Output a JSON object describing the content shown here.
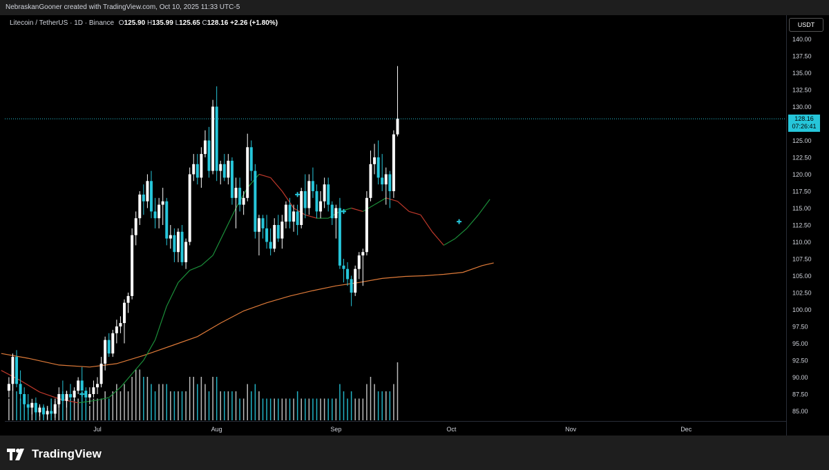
{
  "header": {
    "attribution": "NebraskanGooner created with TradingView.com, Oct 10, 2025 11:33 UTC-5"
  },
  "legend": {
    "symbol": "Litecoin / TetherUS · 1D · Binance",
    "o_label": "O",
    "o_value": "125.90",
    "h_label": "H",
    "h_value": "135.99",
    "l_label": "L",
    "l_value": "125.65",
    "c_label": "C",
    "c_value": "128.16",
    "change": "+2.26 (+1.80%)"
  },
  "currency_button": "USDT",
  "last_price": {
    "price": "128.16",
    "countdown": "07:26:41"
  },
  "footer": {
    "brand": "TradingView"
  },
  "colors": {
    "up": "#ffffff",
    "down": "#26c6da",
    "ma_long": "#e07b39",
    "ma_fast_green": "#1b8f3a",
    "ma_fast_red": "#c0392b",
    "price_line": "#26c6da",
    "axis_text": "#d1d4dc"
  },
  "chart_data": {
    "type": "candlestick",
    "ylim": [
      83.5,
      142.5
    ],
    "y_ticks": [
      "140.00",
      "137.50",
      "135.00",
      "132.50",
      "130.00",
      "127.50",
      "125.00",
      "122.50",
      "120.00",
      "117.50",
      "115.00",
      "112.50",
      "110.00",
      "107.50",
      "105.00",
      "102.50",
      "100.00",
      "97.50",
      "95.00",
      "92.50",
      "90.00",
      "87.50",
      "85.00"
    ],
    "x_tick_labels": [
      {
        "label": "Jul",
        "day": 0
      },
      {
        "label": "Aug",
        "day": 31
      },
      {
        "label": "Sep",
        "day": 62
      },
      {
        "label": "Oct",
        "day": 92
      },
      {
        "label": "Nov",
        "day": 123
      },
      {
        "label": "Dec",
        "day": 153
      }
    ],
    "candles_start_day": -23,
    "candles": [
      [
        88.0,
        90.0,
        87.0,
        89.0
      ],
      [
        89.0,
        93.5,
        88.0,
        93.0
      ],
      [
        93.0,
        94.0,
        88.5,
        89.0
      ],
      [
        89.0,
        91.0,
        86.5,
        87.5
      ],
      [
        87.5,
        88.5,
        85.5,
        86.0
      ],
      [
        86.0,
        87.5,
        84.5,
        85.5
      ],
      [
        85.5,
        86.8,
        84.5,
        86.2
      ],
      [
        86.2,
        87.0,
        84.5,
        84.8
      ],
      [
        84.8,
        86.0,
        84.2,
        85.5
      ],
      [
        85.5,
        86.0,
        84.0,
        84.5
      ],
      [
        84.5,
        85.5,
        83.8,
        85.0
      ],
      [
        85.0,
        86.2,
        84.3,
        84.6
      ],
      [
        84.6,
        86.5,
        84.0,
        86.0
      ],
      [
        86.0,
        88.5,
        85.5,
        87.5
      ],
      [
        87.5,
        89.5,
        86.5,
        86.5
      ],
      [
        86.5,
        88.0,
        85.5,
        87.5
      ],
      [
        87.5,
        89.0,
        86.5,
        87.0
      ],
      [
        87.0,
        88.5,
        86.5,
        88.0
      ],
      [
        88.0,
        90.0,
        87.5,
        89.5
      ],
      [
        89.5,
        91.5,
        88.5,
        88.0
      ],
      [
        88.0,
        88.5,
        86.8,
        87.0
      ],
      [
        87.0,
        88.5,
        86.0,
        87.5
      ],
      [
        87.5,
        89.5,
        87.0,
        88.5
      ],
      [
        88.5,
        90.0,
        87.5,
        89.0
      ],
      [
        89.0,
        93.0,
        88.5,
        92.0
      ],
      [
        92.0,
        96.0,
        91.0,
        95.5
      ],
      [
        95.5,
        96.5,
        93.0,
        93.5
      ],
      [
        93.5,
        97.0,
        93.0,
        96.5
      ],
      [
        96.5,
        98.5,
        95.0,
        97.5
      ],
      [
        97.5,
        99.0,
        96.5,
        98.0
      ],
      [
        98.0,
        101.5,
        95.0,
        101.0
      ],
      [
        101.0,
        102.5,
        99.5,
        102.0
      ],
      [
        102.0,
        112.0,
        101.5,
        111.0
      ],
      [
        111.0,
        114.5,
        109.5,
        113.5
      ],
      [
        113.5,
        117.5,
        112.5,
        117.0
      ],
      [
        117.0,
        118.5,
        114.0,
        116.0
      ],
      [
        116.0,
        120.0,
        115.0,
        119.0
      ],
      [
        119.0,
        120.5,
        113.5,
        114.5
      ],
      [
        114.5,
        116.5,
        112.0,
        113.5
      ],
      [
        113.5,
        116.5,
        112.0,
        115.5
      ],
      [
        115.5,
        118.0,
        112.5,
        116.0
      ],
      [
        116.0,
        116.5,
        109.5,
        110.5
      ],
      [
        110.5,
        112.5,
        109.0,
        111.0
      ],
      [
        111.0,
        112.0,
        107.0,
        108.5
      ],
      [
        108.5,
        112.0,
        107.0,
        111.5
      ],
      [
        111.5,
        112.5,
        106.5,
        107.0
      ],
      [
        107.0,
        110.5,
        106.0,
        110.0
      ],
      [
        110.0,
        121.0,
        109.5,
        120.0
      ],
      [
        120.0,
        123.0,
        119.0,
        121.5
      ],
      [
        121.5,
        123.0,
        118.5,
        119.5
      ],
      [
        119.5,
        124.0,
        118.0,
        123.0
      ],
      [
        123.0,
        126.5,
        122.5,
        125.0
      ],
      [
        125.0,
        127.0,
        119.5,
        120.5
      ],
      [
        120.5,
        131.0,
        120.0,
        130.0
      ],
      [
        130.0,
        133.0,
        119.0,
        120.5
      ],
      [
        120.5,
        122.0,
        118.5,
        121.5
      ],
      [
        121.5,
        123.0,
        119.0,
        119.5
      ],
      [
        119.5,
        123.0,
        118.5,
        122.0
      ],
      [
        122.0,
        122.5,
        115.5,
        116.5
      ],
      [
        116.5,
        119.5,
        112.0,
        118.0
      ],
      [
        118.0,
        119.5,
        114.5,
        115.5
      ],
      [
        115.5,
        117.5,
        114.0,
        116.5
      ],
      [
        116.5,
        126.0,
        116.0,
        124.0
      ],
      [
        124.0,
        125.0,
        119.0,
        120.5
      ],
      [
        120.5,
        121.5,
        110.5,
        111.5
      ],
      [
        111.5,
        114.0,
        108.0,
        113.5
      ],
      [
        113.5,
        114.0,
        110.5,
        112.0
      ],
      [
        112.0,
        114.0,
        109.0,
        110.0
      ],
      [
        110.0,
        112.0,
        108.0,
        109.0
      ],
      [
        109.0,
        113.5,
        108.5,
        112.5
      ],
      [
        112.5,
        114.0,
        110.0,
        110.5
      ],
      [
        110.5,
        114.0,
        109.0,
        113.0
      ],
      [
        113.0,
        116.0,
        112.0,
        115.5
      ],
      [
        115.5,
        116.5,
        112.0,
        113.0
      ],
      [
        113.0,
        115.5,
        111.5,
        114.5
      ],
      [
        114.5,
        115.5,
        111.0,
        112.5
      ],
      [
        112.5,
        118.0,
        112.0,
        117.5
      ],
      [
        117.5,
        120.0,
        113.5,
        115.0
      ],
      [
        115.0,
        120.0,
        114.0,
        119.0
      ],
      [
        119.0,
        121.0,
        116.5,
        117.5
      ],
      [
        117.5,
        118.5,
        113.5,
        114.5
      ],
      [
        114.5,
        117.5,
        113.5,
        116.0
      ],
      [
        116.0,
        119.5,
        115.0,
        118.5
      ],
      [
        118.5,
        119.5,
        114.5,
        115.5
      ],
      [
        115.5,
        116.0,
        112.5,
        113.5
      ],
      [
        113.5,
        115.5,
        110.5,
        115.0
      ],
      [
        115.0,
        116.5,
        106.0,
        106.5
      ],
      [
        106.5,
        107.5,
        104.0,
        106.0
      ],
      [
        106.0,
        107.0,
        103.5,
        104.5
      ],
      [
        104.5,
        105.0,
        100.5,
        102.5
      ],
      [
        102.5,
        106.5,
        102.0,
        106.0
      ],
      [
        106.0,
        108.5,
        104.5,
        108.0
      ],
      [
        108.0,
        109.0,
        103.5,
        108.5
      ],
      [
        108.5,
        117.5,
        108.0,
        116.5
      ],
      [
        116.5,
        123.5,
        116.0,
        121.5
      ],
      [
        121.5,
        124.5,
        120.0,
        122.5
      ],
      [
        122.5,
        125.0,
        118.5,
        119.5
      ],
      [
        119.5,
        123.0,
        117.5,
        118.5
      ],
      [
        118.5,
        121.0,
        115.5,
        120.0
      ],
      [
        120.0,
        120.5,
        115.0,
        117.5
      ],
      [
        117.5,
        126.5,
        116.5,
        125.9
      ],
      [
        125.9,
        136.0,
        125.6,
        128.2
      ]
    ],
    "volumes": [
      3,
      5,
      4,
      3,
      3,
      2,
      2,
      2,
      2,
      2,
      2,
      3,
      3,
      3,
      4,
      4,
      3,
      3,
      3,
      4,
      3,
      2,
      3,
      3,
      3,
      4,
      3,
      4,
      5,
      4,
      5,
      4,
      6,
      7,
      7,
      6,
      6,
      5,
      4,
      5,
      5,
      5,
      4,
      4,
      4,
      4,
      4,
      6,
      6,
      5,
      6,
      5,
      4,
      6,
      6,
      4,
      4,
      4,
      4,
      4,
      3,
      3,
      5,
      4,
      5,
      4,
      3,
      3,
      3,
      3,
      3,
      3,
      3,
      3,
      3,
      4,
      3,
      3,
      3,
      3,
      3,
      3,
      3,
      3,
      3,
      3,
      5,
      4,
      3,
      4,
      3,
      3,
      3,
      5,
      6,
      5,
      4,
      4,
      4,
      4,
      5,
      8
    ],
    "ma_long_label": "",
    "ma_long": [
      [
        -25,
        93.5
      ],
      [
        -18,
        92.8
      ],
      [
        -10,
        91.8
      ],
      [
        -2,
        91.5
      ],
      [
        5,
        92.0
      ],
      [
        12,
        93.2
      ],
      [
        20,
        94.8
      ],
      [
        26,
        96.0
      ],
      [
        32,
        98.0
      ],
      [
        38,
        99.8
      ],
      [
        44,
        101.0
      ],
      [
        50,
        102.0
      ],
      [
        56,
        102.8
      ],
      [
        62,
        103.5
      ],
      [
        68,
        104.0
      ],
      [
        74,
        104.6
      ],
      [
        80,
        104.9
      ],
      [
        85,
        105.0
      ],
      [
        90,
        105.2
      ],
      [
        95,
        105.5
      ],
      [
        100,
        106.5
      ],
      [
        103,
        106.9
      ]
    ],
    "ma_fast": [
      [
        -25,
        91.0
      ],
      [
        -20,
        89.5
      ],
      [
        -15,
        87.8
      ],
      [
        -10,
        86.8
      ],
      [
        -5,
        86.2
      ],
      [
        0,
        86.6
      ],
      [
        3,
        87.0
      ],
      [
        6,
        88.5
      ],
      [
        9,
        90.5
      ],
      [
        12,
        92.5
      ],
      [
        15,
        95.5
      ],
      [
        18,
        100.5
      ],
      [
        21,
        104.0
      ],
      [
        24,
        105.8
      ],
      [
        27,
        106.5
      ],
      [
        30,
        108.0
      ],
      [
        33,
        111.5
      ],
      [
        36,
        115.0
      ],
      [
        39,
        118.0
      ],
      [
        42,
        120.0
      ],
      [
        45,
        119.5
      ],
      [
        48,
        117.5
      ],
      [
        51,
        115.0
      ],
      [
        54,
        114.0
      ],
      [
        57,
        113.5
      ],
      [
        60,
        113.5
      ],
      [
        63,
        114.5
      ],
      [
        66,
        115.0
      ],
      [
        69,
        114.5
      ],
      [
        72,
        115.5
      ],
      [
        75,
        116.5
      ],
      [
        78,
        116.0
      ],
      [
        81,
        114.5
      ],
      [
        84,
        114.0
      ],
      [
        87,
        111.5
      ],
      [
        90,
        109.5
      ],
      [
        93,
        110.5
      ],
      [
        96,
        112.0
      ],
      [
        99,
        114.0
      ],
      [
        102,
        116.3
      ]
    ],
    "markers": [
      [
        -4,
        87.5
      ],
      [
        52,
        117.0
      ],
      [
        64,
        114.5
      ],
      [
        94,
        113.0
      ]
    ]
  }
}
